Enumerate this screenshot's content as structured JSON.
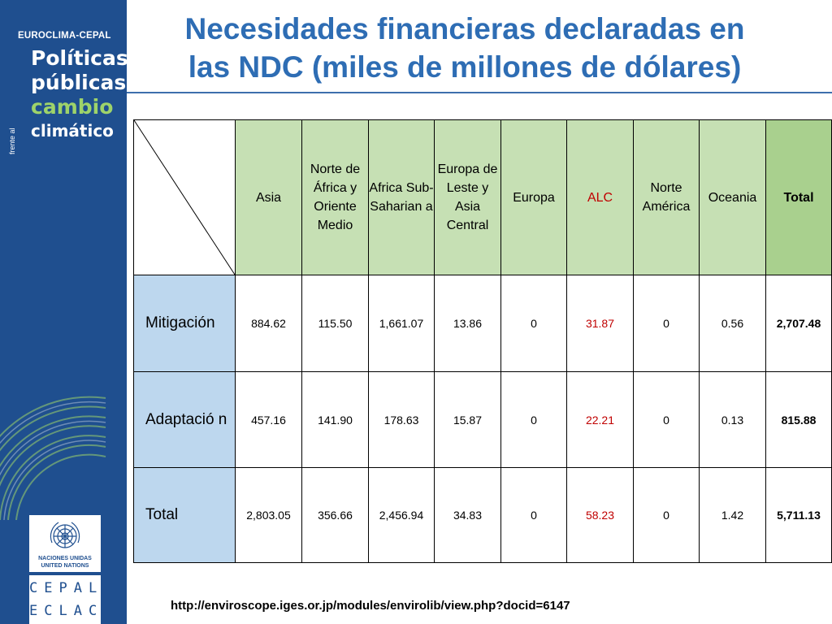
{
  "brand": {
    "top": "EUROCLIMA-CEPAL",
    "line1": "Políticas",
    "line2": "públicas",
    "frente": "frente al",
    "line3": "cambio",
    "line4": "climático",
    "accent": "#9ed36a",
    "sidebar_color": "#1f4f8f"
  },
  "un_logo": {
    "line1": "NACIONES UNIDAS",
    "line2": "UNITED NATIONS"
  },
  "cepal_logo": {
    "line1": "CEPAL",
    "line2": "ECLAC"
  },
  "slide": {
    "title_line1": "Necesidades financieras declaradas en",
    "title_line2": "las NDC (miles de millones de dólares)",
    "source": "http://enviroscope.iges.or.jp/modules/envirolib/view.php?docid=6147"
  },
  "table": {
    "headers": [
      "Asia",
      "Norte de África y Oriente Medio",
      "Africa Sub-Saharian a",
      "Europa de Leste y Asia Central",
      "Europa",
      "ALC",
      "Norte América",
      "Oceania",
      "Total"
    ],
    "rows": [
      {
        "label": "Mitigación",
        "values": [
          "884.62",
          "115.50",
          "1,661.07",
          "13.86",
          "0",
          "31.87",
          "0",
          "0.56",
          "2,707.48"
        ]
      },
      {
        "label": "Adaptació n",
        "values": [
          "457.16",
          "141.90",
          "178.63",
          "15.87",
          "0",
          "22.21",
          "0",
          "0.13",
          "815.88"
        ]
      },
      {
        "label": "Total",
        "values": [
          "2,803.05",
          "356.66",
          "2,456.94",
          "34.83",
          "0",
          "58.23",
          "0",
          "1.42",
          "5,711.13"
        ]
      }
    ],
    "colors": {
      "header_bg": "#c6e0b4",
      "header_total_bg": "#a9d08e",
      "row_label_bg": "#bdd7ee",
      "alc_red": "#c00000"
    }
  }
}
